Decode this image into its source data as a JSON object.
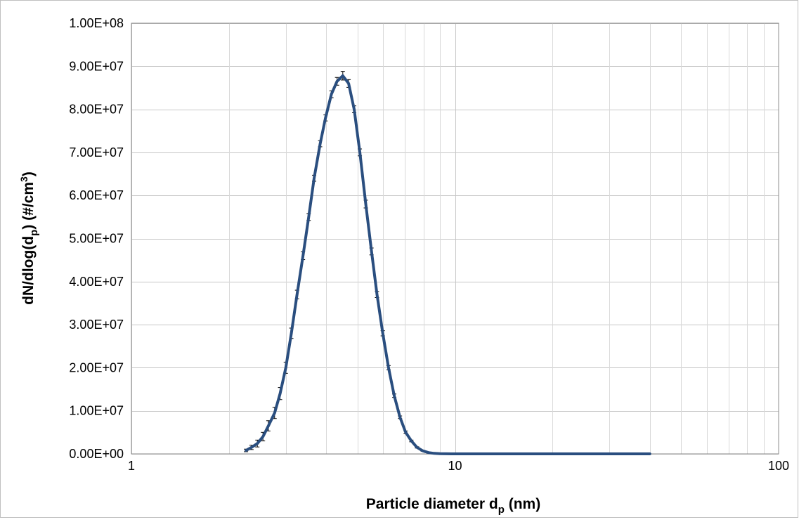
{
  "chart_data": {
    "type": "line",
    "title": "",
    "xlabel": {
      "main": "Particle diameter d",
      "sub": "p",
      "tail": " (nm)"
    },
    "ylabel": {
      "main": "dN/dlog(d",
      "sub": "p",
      "mid": ") (#/cm",
      "sup": "3",
      "tail": ")"
    },
    "x_scale": "log",
    "xlim": [
      1,
      100
    ],
    "ylim": [
      0,
      100000000
    ],
    "x_tick_labels": [
      "1",
      "10",
      "100"
    ],
    "y_tick_labels": [
      "0.00E+00",
      "1.00E+07",
      "2.00E+07",
      "3.00E+07",
      "4.00E+07",
      "5.00E+07",
      "6.00E+07",
      "7.00E+07",
      "8.00E+07",
      "9.00E+07",
      "1.00E+08"
    ],
    "grid": true,
    "legend": "none",
    "series": [
      {
        "color": "#2a4e7f",
        "x": [
          2.26,
          2.35,
          2.45,
          2.55,
          2.65,
          2.77,
          2.88,
          3.0,
          3.12,
          3.25,
          3.39,
          3.53,
          3.67,
          3.83,
          3.98,
          4.15,
          4.32,
          4.5,
          4.69,
          4.88,
          5.08,
          5.3,
          5.52,
          5.74,
          5.98,
          6.23,
          6.49,
          6.76,
          7.04,
          7.33,
          7.63,
          7.95,
          8.28,
          8.62,
          8.98,
          9.35,
          9.74,
          10.15,
          10.6,
          11.5,
          13,
          15,
          20,
          25,
          30,
          35,
          40
        ],
        "y": [
          800000,
          1500000,
          2400000,
          4000000,
          6500000,
          9500000,
          14000000,
          20000000,
          28000000,
          37000000,
          46000000,
          55000000,
          64000000,
          72000000,
          78000000,
          83500000,
          86500000,
          87800000,
          86000000,
          80000000,
          70000000,
          58000000,
          47000000,
          37000000,
          28000000,
          20000000,
          13500000,
          8500000,
          5000000,
          3000000,
          1500000,
          700000,
          300000,
          120000,
          50000,
          20000,
          8000,
          3000,
          1000,
          300,
          100,
          50,
          0,
          0,
          0,
          0,
          0
        ],
        "error": [
          300000,
          500000,
          800000,
          1000000,
          1200000,
          1300000,
          1400000,
          1300000,
          1200000,
          1000000,
          900000,
          800000,
          700000,
          700000,
          700000,
          800000,
          900000,
          1000000,
          900000,
          800000,
          800000,
          900000,
          800000,
          700000,
          600000,
          500000,
          400000,
          300000,
          300000,
          200000,
          150000,
          100000,
          50000,
          20000,
          10000,
          0,
          0,
          0,
          0,
          0,
          0,
          0,
          0,
          0,
          0,
          0,
          0
        ]
      }
    ]
  }
}
